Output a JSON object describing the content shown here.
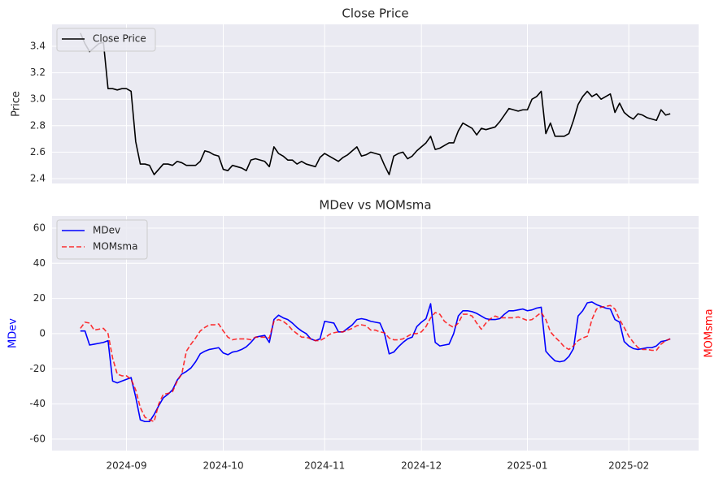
{
  "chart_data": [
    {
      "type": "line",
      "title": "Close Price",
      "ylabel": "Price",
      "sharex": true,
      "grid": true,
      "legend": "upper left",
      "ylim": [
        2.363,
        3.566
      ],
      "yticks": [
        2.4,
        2.6,
        2.8,
        {
          "value": 3,
          "label": "3.0"
        },
        3.2,
        3.4
      ],
      "series": [
        {
          "name": "Close Price",
          "color": "#000000",
          "values": [
            3.5,
            3.42,
            3.36,
            3.39,
            3.42,
            3.43,
            3.08,
            3.08,
            3.07,
            3.08,
            3.08,
            3.06,
            2.68,
            2.51,
            2.51,
            2.5,
            2.43,
            2.47,
            2.51,
            2.51,
            2.5,
            2.53,
            2.52,
            2.5,
            2.5,
            2.5,
            2.53,
            2.61,
            2.6,
            2.58,
            2.57,
            2.47,
            2.46,
            2.5,
            2.49,
            2.48,
            2.46,
            2.54,
            2.55,
            2.54,
            2.53,
            2.49,
            2.64,
            2.59,
            2.57,
            2.54,
            2.54,
            2.51,
            2.53,
            2.51,
            2.5,
            2.49,
            2.56,
            2.59,
            2.57,
            2.55,
            2.53,
            2.56,
            2.58,
            2.61,
            2.64,
            2.57,
            2.58,
            2.6,
            2.59,
            2.58,
            2.5,
            2.43,
            2.57,
            2.59,
            2.6,
            2.55,
            2.57,
            2.61,
            2.64,
            2.67,
            2.72,
            2.62,
            2.63,
            2.65,
            2.67,
            2.67,
            2.76,
            2.82,
            2.8,
            2.78,
            2.73,
            2.78,
            2.77,
            2.78,
            2.79,
            2.83,
            2.88,
            2.93,
            2.92,
            2.91,
            2.92,
            2.92,
            3.0,
            3.02,
            3.06,
            2.74,
            2.82,
            2.72,
            2.72,
            2.72,
            2.74,
            2.84,
            2.96,
            3.02,
            3.06,
            3.02,
            3.04,
            3.0,
            3.02,
            3.04,
            2.9,
            2.97,
            2.9,
            2.87,
            2.85,
            2.89,
            2.88,
            2.86,
            2.85,
            2.84,
            2.92,
            2.88,
            2.89
          ]
        }
      ]
    },
    {
      "type": "line",
      "title": "MDev vs MOMsma",
      "ylabel": "MDev",
      "ylabel_color": "#0000ff",
      "y2label": "MOMsma",
      "y2label_color": "#ff0000",
      "grid": true,
      "legend": "upper left",
      "ylim": [
        -66.5,
        66.9
      ],
      "yticks": [
        -60,
        -40,
        -20,
        0,
        20,
        40,
        60
      ],
      "x": [
        null,
        null,
        null,
        null,
        null,
        null,
        null,
        null,
        null,
        null,
        "2024-09",
        null,
        null,
        null,
        null,
        null,
        null,
        null,
        null,
        null,
        null,
        null,
        null,
        null,
        null,
        null,
        null,
        null,
        null,
        null,
        null,
        "2024-10",
        null,
        null,
        null,
        null,
        null,
        null,
        null,
        null,
        null,
        null,
        null,
        null,
        null,
        null,
        null,
        null,
        null,
        null,
        null,
        null,
        null,
        "2024-11",
        null,
        null,
        null,
        null,
        null,
        null,
        null,
        null,
        null,
        null,
        null,
        null,
        null,
        null,
        null,
        null,
        null,
        null,
        null,
        null,
        "2024-12",
        null,
        null,
        null,
        null,
        null,
        null,
        null,
        null,
        null,
        null,
        null,
        null,
        null,
        null,
        null,
        null,
        null,
        null,
        null,
        null,
        null,
        null,
        "2025-01",
        null,
        null,
        null,
        null,
        null,
        null,
        null,
        null,
        null,
        null,
        null,
        null,
        null,
        null,
        null,
        null,
        null,
        null,
        null,
        null,
        null,
        "2025-02",
        null,
        null,
        null,
        null,
        null,
        null,
        null,
        null,
        null
      ],
      "series": [
        {
          "name": "MDev",
          "color": "#0000ff",
          "values": [
            1.5,
            1.5,
            -6.5,
            -6,
            -5.5,
            -5,
            -4,
            -27,
            -28,
            -27,
            -26,
            -25,
            -36,
            -49,
            -50,
            -50,
            -46,
            -41,
            -36.5,
            -34.5,
            -32,
            -26.5,
            -23,
            -21.5,
            -19.5,
            -16,
            -11.5,
            -10,
            -9,
            -8.5,
            -8,
            -11,
            -12,
            -10.5,
            -10,
            -9,
            -7.5,
            -5,
            -2,
            -1.5,
            -1,
            -5,
            8,
            10.5,
            9,
            8,
            6,
            3.5,
            1.5,
            0,
            -3,
            -4,
            -3,
            7,
            6.5,
            6,
            1,
            1,
            3,
            5,
            8,
            8.5,
            8,
            7,
            6.5,
            6,
            0,
            -11.5,
            -10.5,
            -7.5,
            -5,
            -3,
            -2,
            4,
            6.5,
            8.5,
            17,
            -5,
            -7,
            -6.5,
            -6,
            0,
            10,
            13,
            13,
            12.5,
            11.5,
            10,
            8.5,
            8,
            8,
            8.5,
            11,
            13,
            13,
            13.5,
            14,
            13,
            13.5,
            14.5,
            15,
            -10,
            -13,
            -15.5,
            -16,
            -15.5,
            -13,
            -8.5,
            10,
            13,
            17.5,
            18,
            16.5,
            15.5,
            14.5,
            14,
            8,
            6.5,
            -4.5,
            -7,
            -8.5,
            -9,
            -8.5,
            -8,
            -8,
            -7,
            -4.5,
            -4,
            -3
          ]
        },
        {
          "name": "MOMsma",
          "color": "#ff0000",
          "alpha": 0.8,
          "linestyle": "dashed",
          "values": [
            3,
            6.5,
            6,
            2,
            2.5,
            3,
            0,
            -14,
            -23,
            -24,
            -24,
            -26,
            -32,
            -42,
            -47.5,
            -49,
            -50,
            -40,
            -34.5,
            -34,
            -33,
            -27,
            -23,
            -10,
            -6,
            -2.5,
            1.5,
            3.5,
            5,
            5,
            5.5,
            1.5,
            -2,
            -3.5,
            -3,
            -3,
            -3,
            -3.5,
            -2,
            -2,
            -2,
            -2.5,
            7,
            8,
            7,
            5,
            2,
            0,
            -2,
            -2,
            -3,
            -4,
            -4,
            -2.5,
            -0.5,
            0.5,
            1,
            1,
            2,
            3,
            4.5,
            5,
            4.5,
            2,
            2,
            1,
            0.5,
            -2.5,
            -3.5,
            -3.5,
            -3,
            -1.5,
            0,
            0,
            1,
            4,
            9,
            12,
            11,
            7,
            5,
            3.5,
            6,
            11,
            11,
            10,
            6,
            2.5,
            6,
            8.5,
            10,
            9,
            9,
            9,
            9,
            9.5,
            8.5,
            7.5,
            8,
            10,
            12,
            8,
            1,
            -2,
            -4.5,
            -7.5,
            -9,
            -7,
            -4,
            -2.5,
            -1.5,
            8,
            14,
            15,
            15.5,
            16,
            14,
            8,
            3.5,
            -1.5,
            -5,
            -8,
            -9,
            -9,
            -9.5,
            -9.5,
            -6,
            -4,
            -3
          ]
        }
      ]
    }
  ]
}
